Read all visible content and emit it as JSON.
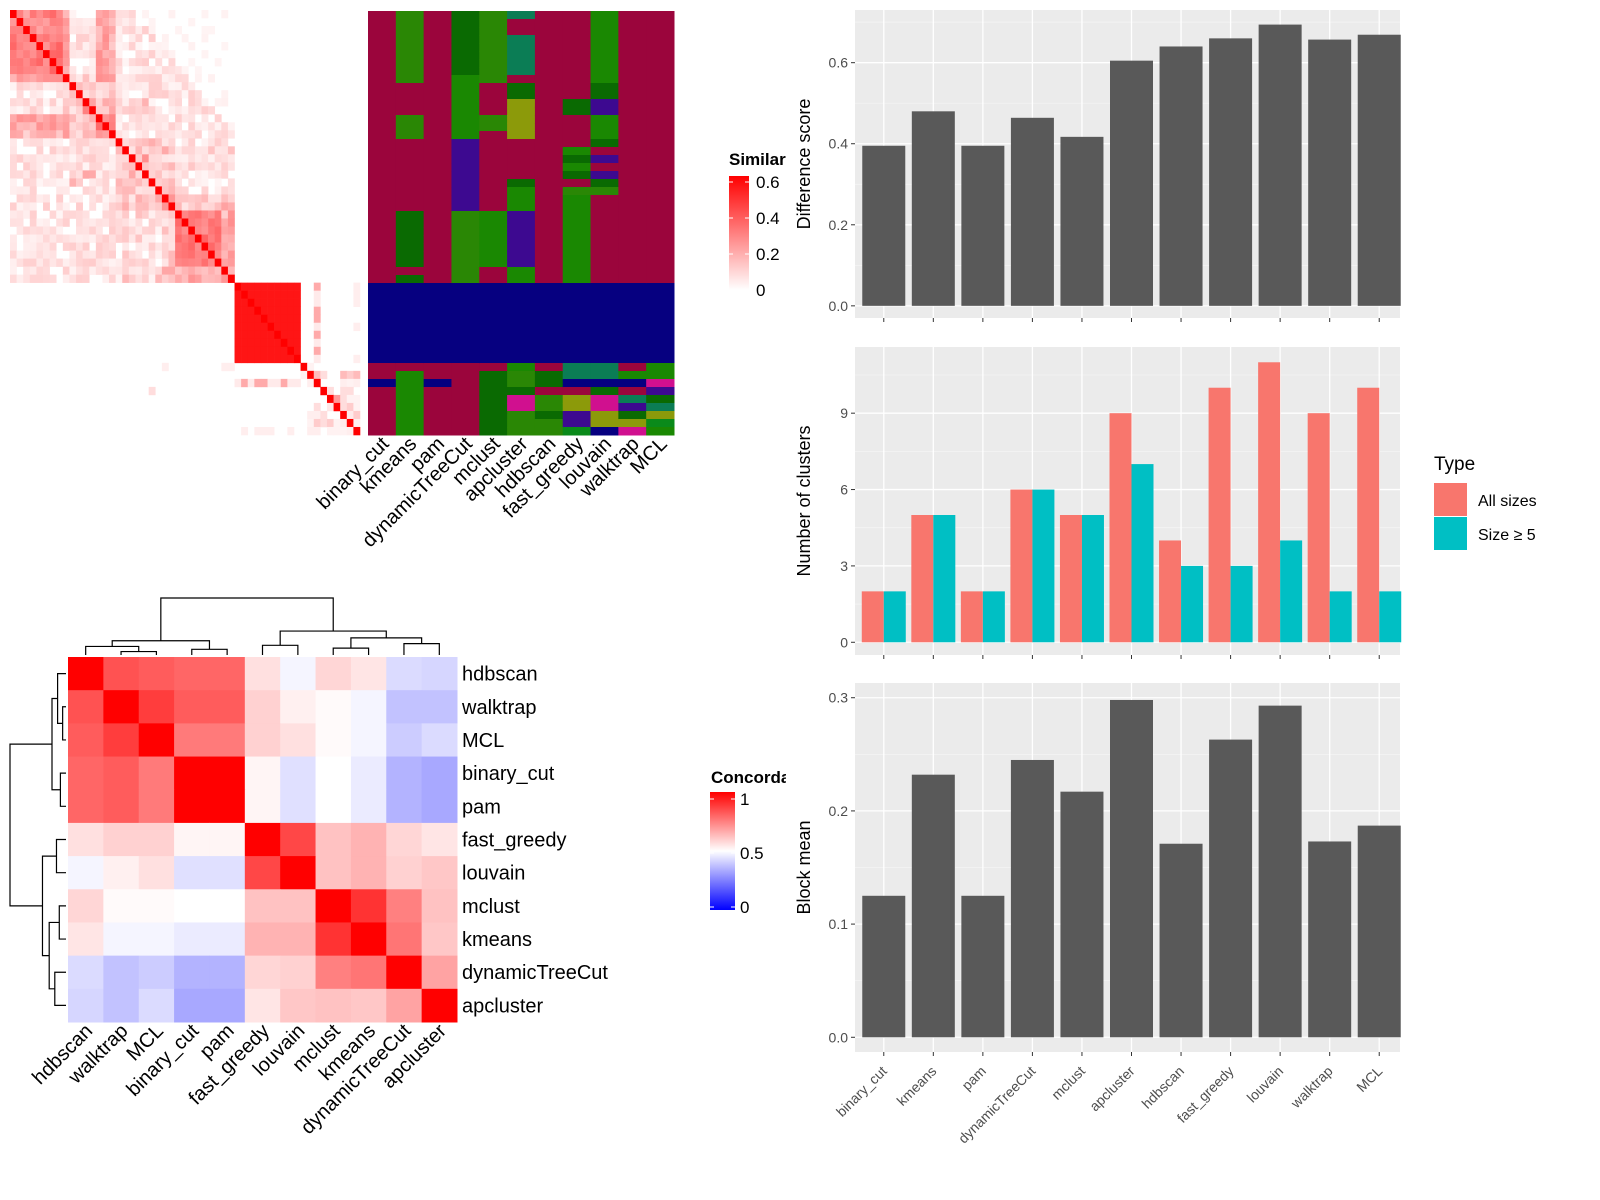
{
  "chart_data": [
    {
      "type": "heatmap",
      "name": "similarity-heatmap",
      "legend": {
        "title": "Similarity",
        "ticks": [
          "0.6",
          "0.4",
          "0.2",
          "0"
        ],
        "range": [
          0,
          0.6
        ],
        "colors": [
          "#ffffff",
          "#ff0000"
        ]
      },
      "n_items": 53
    },
    {
      "type": "heatmap",
      "name": "cluster-assignments",
      "methods": [
        "binary_cut",
        "kmeans",
        "pam",
        "dynamicTreeCut",
        "mclust",
        "apcluster",
        "hdbscan",
        "fast_greedy",
        "louvain",
        "walktrap",
        "MCL"
      ],
      "cluster_colors": {
        "A": "#9b053c",
        "B": "#2a8705",
        "C": "#0a6a02",
        "D": "#1a8802",
        "E": "#0b7d55",
        "F": "#8c9a0a",
        "G": "#3d0990",
        "H": "#060080",
        "I": "#d0108f",
        "J": "#0a8a1a"
      },
      "assignments": [
        "AAAAAAAAAAAAAAAAAAAAAAAAAAAAAAAAAAHHHHHHHHHHAAHAAAAAA",
        "BBBBBBBBBAAAABBBAAAAAAAAACCCCCCCACHHHHHHHHHHADDDDDDDD",
        "AAAAAAAAAAAAAAAAAAAAAAAAAAAAAAAAAAHHHHHHHHHHAAHAAAAAA",
        "CCCCCCCCDDDDDDDDGGGGGGGGGBBBBBBBBBHHHHHHHHHHAAAAAAAAA",
        "BBBBBBBBBAAAABBAAAAAAAAAADDDDDDDAAHHHHHHHHHHACCCCCCCC",
        "EAAEEEEEACCFFFFFAAAAACDDDGGGGGGGDDHHHHHHHHHHDBBCIIBBB",
        "AAAAAAAAAAAAAAAAAAAAAAAAAAAAAAAAAAHHHHHHHHHHACCABBCBB",
        "AAAAAAAAAAACCAAAADCDCABDDDDDDDDDDDHHHHHHHHHHEEHAFFGGJ",
        "DDDDDDDDDCCGGDDDCAGAGCBAAAAAAAAAAAHHHHHHHHHHEEHCIIFFH",
        "AAAAAAAAAAAAAAAAAAAAAAAAAAAAAAAAAAHHHHHHHHHHADHAEGCFI",
        "AAAAAAAAAAAAAAAAAAAAAAAAAAAAAAAAAAHHHHHHHHHHDDIGCEFJD"
      ]
    },
    {
      "type": "heatmap",
      "name": "concordance-heatmap",
      "legend": {
        "title": "Concordance",
        "ticks": [
          "1",
          "0.5",
          "0"
        ],
        "range": [
          0,
          1
        ],
        "colors": [
          "#0000ff",
          "#ffffff",
          "#ff0000"
        ]
      },
      "labels": [
        "hdbscan",
        "walktrap",
        "MCL",
        "binary_cut",
        "pam",
        "fast_greedy",
        "louvain",
        "mclust",
        "kmeans",
        "dynamicTreeCut",
        "apcluster"
      ],
      "values": [
        [
          1.0,
          0.84,
          0.82,
          0.8,
          0.8,
          0.56,
          0.48,
          0.58,
          0.55,
          0.43,
          0.42
        ],
        [
          0.84,
          1.0,
          0.88,
          0.82,
          0.82,
          0.59,
          0.53,
          0.51,
          0.48,
          0.38,
          0.38
        ],
        [
          0.82,
          0.88,
          1.0,
          0.76,
          0.76,
          0.59,
          0.56,
          0.51,
          0.48,
          0.4,
          0.43
        ],
        [
          0.8,
          0.82,
          0.76,
          1.0,
          1.0,
          0.52,
          0.44,
          0.5,
          0.46,
          0.35,
          0.33
        ],
        [
          0.8,
          0.82,
          0.76,
          1.0,
          1.0,
          0.52,
          0.44,
          0.5,
          0.46,
          0.35,
          0.33
        ],
        [
          0.56,
          0.59,
          0.59,
          0.52,
          0.52,
          1.0,
          0.86,
          0.62,
          0.65,
          0.58,
          0.55
        ],
        [
          0.48,
          0.53,
          0.56,
          0.44,
          0.44,
          0.86,
          1.0,
          0.62,
          0.65,
          0.59,
          0.61
        ],
        [
          0.58,
          0.51,
          0.51,
          0.5,
          0.5,
          0.62,
          0.62,
          1.0,
          0.9,
          0.75,
          0.62
        ],
        [
          0.55,
          0.48,
          0.48,
          0.46,
          0.46,
          0.65,
          0.65,
          0.9,
          1.0,
          0.77,
          0.61
        ],
        [
          0.43,
          0.38,
          0.4,
          0.35,
          0.35,
          0.58,
          0.59,
          0.75,
          0.77,
          1.0,
          0.68
        ],
        [
          0.42,
          0.38,
          0.43,
          0.33,
          0.33,
          0.55,
          0.61,
          0.62,
          0.61,
          0.68,
          1.0
        ]
      ]
    },
    {
      "type": "bar",
      "name": "difference-score",
      "categories": [
        "binary_cut",
        "kmeans",
        "pam",
        "dynamicTreeCut",
        "mclust",
        "apcluster",
        "hdbscan",
        "fast_greedy",
        "louvain",
        "walktrap",
        "MCL"
      ],
      "values": [
        0.395,
        0.48,
        0.395,
        0.464,
        0.417,
        0.605,
        0.64,
        0.66,
        0.694,
        0.657,
        0.669
      ],
      "ylabel": "Difference score",
      "yticks": [
        "0.0",
        "0.2",
        "0.4",
        "0.6"
      ],
      "ylim": [
        -0.03,
        0.73
      ],
      "color": "#595959"
    },
    {
      "type": "bar",
      "name": "number-of-clusters",
      "categories": [
        "binary_cut",
        "kmeans",
        "pam",
        "dynamicTreeCut",
        "mclust",
        "apcluster",
        "hdbscan",
        "fast_greedy",
        "louvain",
        "walktrap",
        "MCL"
      ],
      "series": [
        {
          "name": "All sizes",
          "values": [
            2,
            5,
            2,
            6,
            5,
            9,
            4,
            10,
            11,
            9,
            10
          ],
          "color": "#f8766d"
        },
        {
          "name": "Size ≥ 5",
          "values": [
            2,
            5,
            2,
            6,
            5,
            7,
            3,
            3,
            4,
            2,
            2
          ],
          "color": "#00bfc4"
        }
      ],
      "ylabel": "Number of clusters",
      "yticks": [
        "0",
        "3",
        "6",
        "9"
      ],
      "ylim": [
        -0.5,
        11.6
      ],
      "legend": {
        "title": "Type",
        "placement": "right"
      }
    },
    {
      "type": "bar",
      "name": "block-mean",
      "categories": [
        "binary_cut",
        "kmeans",
        "pam",
        "dynamicTreeCut",
        "mclust",
        "apcluster",
        "hdbscan",
        "fast_greedy",
        "louvain",
        "walktrap",
        "MCL"
      ],
      "values": [
        0.125,
        0.232,
        0.125,
        0.245,
        0.217,
        0.298,
        0.171,
        0.263,
        0.293,
        0.173,
        0.187
      ],
      "ylabel": "Block mean",
      "yticks": [
        "0.0",
        "0.1",
        "0.2",
        "0.3"
      ],
      "ylim": [
        -0.013,
        0.313
      ],
      "color": "#595959"
    }
  ]
}
